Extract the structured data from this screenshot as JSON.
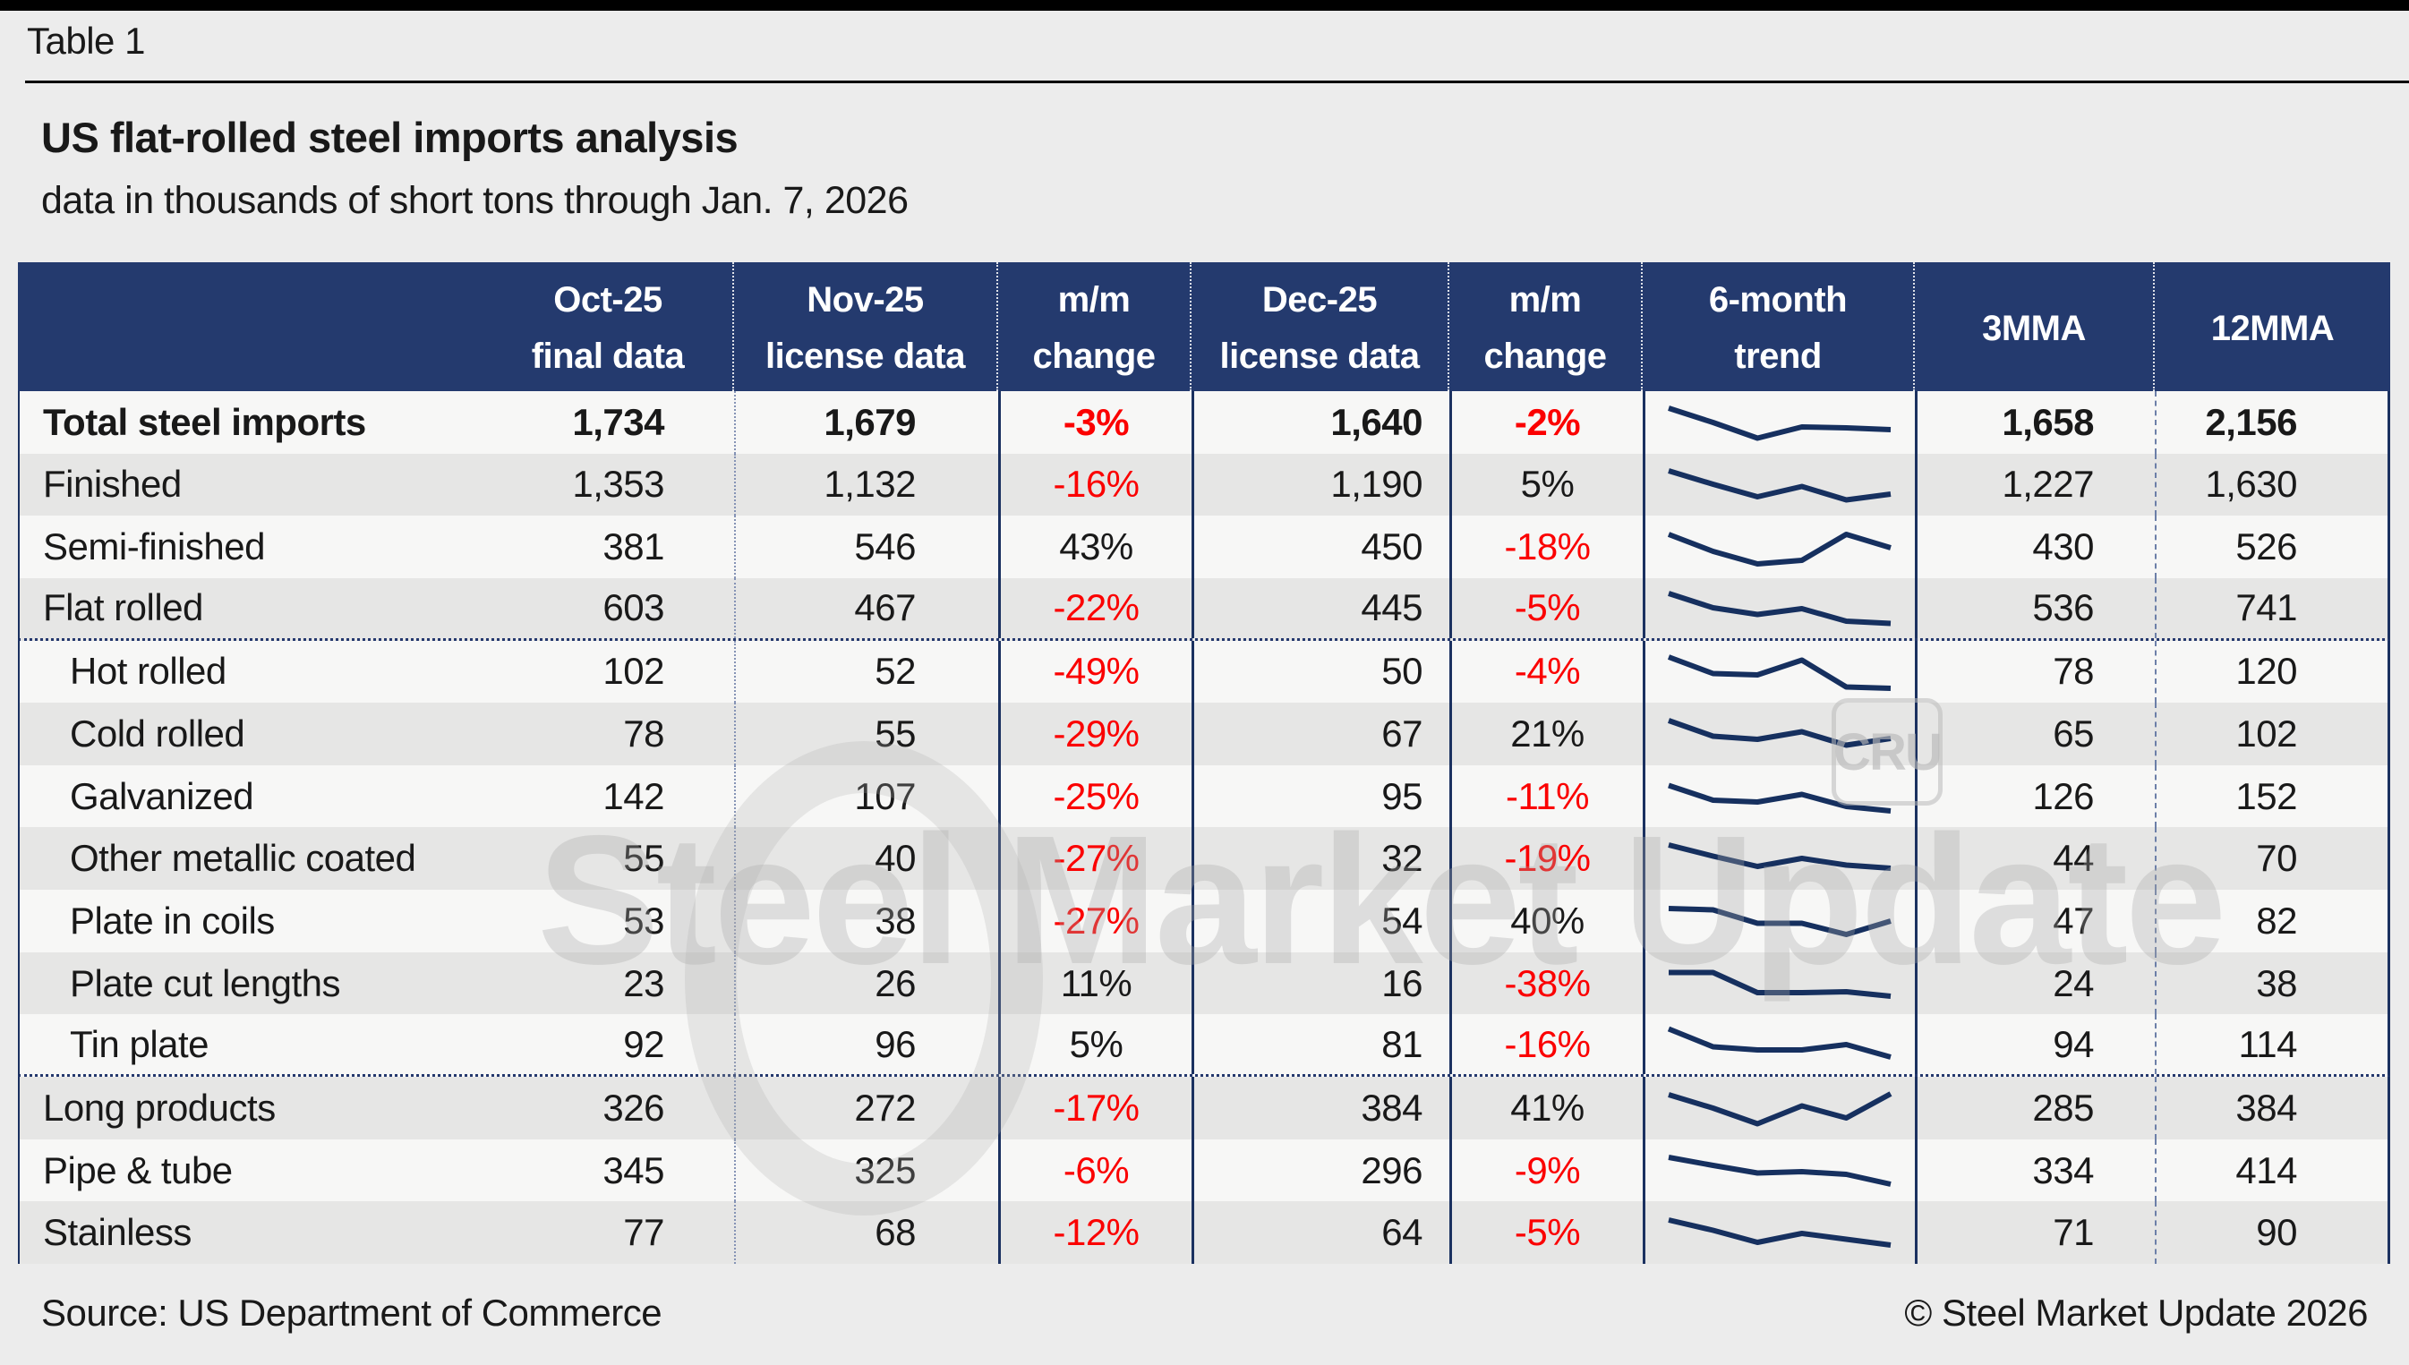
{
  "page": {
    "tag": "Table 1",
    "title": "US flat-rolled steel imports analysis",
    "subtitle": "data in thousands of short tons through Jan. 7, 2026",
    "source": "Source: US Department of Commerce",
    "copyright": "© Steel Market Update 2026"
  },
  "watermark": {
    "text": "Steel Market Update",
    "badge": "CRU"
  },
  "colors": {
    "header_bg": "#243a6e",
    "line_navy": "#1b3160",
    "sparkline": "#16305f",
    "negative_red": "#fb0000",
    "row_base": "#f7f7f6",
    "row_alt": "#e6e6e5"
  },
  "table": {
    "columns": [
      {
        "id": "label",
        "line1": "",
        "line2": ""
      },
      {
        "id": "oct",
        "line1": "Oct-25",
        "line2": "final data"
      },
      {
        "id": "nov",
        "line1": "Nov-25",
        "line2": "license data"
      },
      {
        "id": "mm1",
        "line1": "m/m",
        "line2": "change"
      },
      {
        "id": "dec",
        "line1": "Dec-25",
        "line2": "license data"
      },
      {
        "id": "mm2",
        "line1": "m/m",
        "line2": "change"
      },
      {
        "id": "trend",
        "line1": "6-month",
        "line2": "trend"
      },
      {
        "id": "mma3",
        "line1": "3MMA",
        "line2": ""
      },
      {
        "id": "mma12",
        "line1": "12MMA",
        "line2": ""
      }
    ],
    "rows": [
      {
        "label": "Total steel imports",
        "bold": true,
        "indent": false,
        "sep_after": false,
        "oct": "1,734",
        "nov": "1,679",
        "mm1": "-3%",
        "mm1_neg": true,
        "dec": "1,640",
        "mm2": "-2%",
        "mm2_neg": true,
        "mma3": "1,658",
        "mma12": "2,156",
        "trend": [
          82,
          50,
          15,
          40,
          38,
          34
        ]
      },
      {
        "label": "Finished",
        "bold": false,
        "indent": false,
        "sep_after": false,
        "oct": "1,353",
        "nov": "1,132",
        "mm1": "-16%",
        "mm1_neg": true,
        "dec": "1,190",
        "mm2": "5%",
        "mm2_neg": false,
        "mma3": "1,227",
        "mma12": "1,630",
        "trend": [
          80,
          50,
          22,
          45,
          15,
          28
        ]
      },
      {
        "label": "Semi-finished",
        "bold": false,
        "indent": false,
        "sep_after": false,
        "oct": "381",
        "nov": "546",
        "mm1": "43%",
        "mm1_neg": false,
        "dec": "450",
        "mm2": "-18%",
        "mm2_neg": true,
        "mma3": "430",
        "mma12": "526",
        "trend": [
          78,
          40,
          12,
          20,
          78,
          48
        ]
      },
      {
        "label": "Flat rolled",
        "bold": false,
        "indent": false,
        "sep_after": true,
        "oct": "603",
        "nov": "467",
        "mm1": "-22%",
        "mm1_neg": true,
        "dec": "445",
        "mm2": "-5%",
        "mm2_neg": true,
        "mma3": "536",
        "mma12": "741",
        "trend": [
          82,
          50,
          35,
          48,
          20,
          15
        ]
      },
      {
        "label": "Hot rolled",
        "bold": false,
        "indent": true,
        "sep_after": false,
        "oct": "102",
        "nov": "52",
        "mm1": "-49%",
        "mm1_neg": true,
        "dec": "50",
        "mm2": "-4%",
        "mm2_neg": true,
        "mma3": "78",
        "mma12": "120",
        "trend": [
          82,
          45,
          42,
          75,
          15,
          12
        ]
      },
      {
        "label": "Cold rolled",
        "bold": false,
        "indent": true,
        "sep_after": false,
        "oct": "78",
        "nov": "55",
        "mm1": "-29%",
        "mm1_neg": true,
        "dec": "67",
        "mm2": "21%",
        "mm2_neg": false,
        "mma3": "65",
        "mma12": "102",
        "trend": [
          80,
          45,
          38,
          55,
          25,
          40
        ]
      },
      {
        "label": "Galvanized",
        "bold": false,
        "indent": true,
        "sep_after": false,
        "oct": "142",
        "nov": "107",
        "mm1": "-25%",
        "mm1_neg": true,
        "dec": "95",
        "mm2": "-11%",
        "mm2_neg": true,
        "mma3": "126",
        "mma12": "152",
        "trend": [
          75,
          42,
          38,
          55,
          28,
          18
        ]
      },
      {
        "label": "Other metallic coated",
        "bold": false,
        "indent": true,
        "sep_after": false,
        "oct": "55",
        "nov": "40",
        "mm1": "-27%",
        "mm1_neg": true,
        "dec": "32",
        "mm2": "-19%",
        "mm2_neg": true,
        "mma3": "44",
        "mma12": "70",
        "trend": [
          80,
          55,
          32,
          50,
          35,
          28
        ]
      },
      {
        "label": "Plate in coils",
        "bold": false,
        "indent": true,
        "sep_after": false,
        "oct": "53",
        "nov": "38",
        "mm1": "-27%",
        "mm1_neg": true,
        "dec": "54",
        "mm2": "40%",
        "mm2_neg": false,
        "mma3": "47",
        "mma12": "82",
        "trend": [
          78,
          75,
          45,
          45,
          20,
          50
        ]
      },
      {
        "label": "Plate cut lengths",
        "bold": false,
        "indent": true,
        "sep_after": false,
        "oct": "23",
        "nov": "26",
        "mm1": "11%",
        "mm1_neg": false,
        "dec": "16",
        "mm2": "-38%",
        "mm2_neg": true,
        "mma3": "24",
        "mma12": "38",
        "trend": [
          75,
          75,
          30,
          30,
          32,
          22
        ]
      },
      {
        "label": "Tin plate",
        "bold": false,
        "indent": true,
        "sep_after": true,
        "oct": "92",
        "nov": "96",
        "mm1": "5%",
        "mm1_neg": false,
        "dec": "81",
        "mm2": "-16%",
        "mm2_neg": true,
        "mma3": "94",
        "mma12": "114",
        "trend": [
          85,
          45,
          38,
          38,
          50,
          22
        ]
      },
      {
        "label": "Long products",
        "bold": false,
        "indent": false,
        "sep_after": false,
        "oct": "326",
        "nov": "272",
        "mm1": "-17%",
        "mm1_neg": true,
        "dec": "384",
        "mm2": "41%",
        "mm2_neg": false,
        "mma3": "285",
        "mma12": "384",
        "trend": [
          80,
          50,
          15,
          55,
          28,
          82
        ]
      },
      {
        "label": "Pipe & tube",
        "bold": false,
        "indent": false,
        "sep_after": false,
        "oct": "345",
        "nov": "325",
        "mm1": "-6%",
        "mm1_neg": true,
        "dec": "296",
        "mm2": "-9%",
        "mm2_neg": true,
        "mma3": "334",
        "mma12": "414",
        "trend": [
          80,
          62,
          45,
          48,
          42,
          20
        ]
      },
      {
        "label": "Stainless",
        "bold": false,
        "indent": false,
        "sep_after": false,
        "oct": "77",
        "nov": "68",
        "mm1": "-12%",
        "mm1_neg": true,
        "dec": "64",
        "mm2": "-5%",
        "mm2_neg": true,
        "mma3": "71",
        "mma12": "90",
        "trend": [
          78,
          55,
          28,
          48,
          35,
          22
        ]
      }
    ]
  }
}
